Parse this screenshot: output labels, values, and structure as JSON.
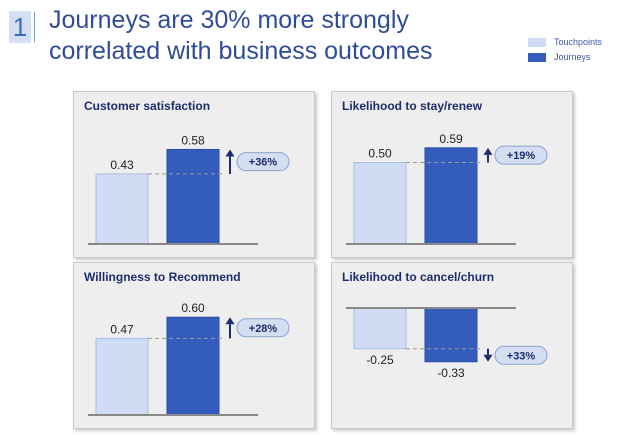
{
  "header": {
    "slide_number": "1",
    "title": "Journeys are 30% more strongly correlated with business outcomes"
  },
  "legend": [
    {
      "label": "Touchpoints",
      "color": "#cfdcf3"
    },
    {
      "label": "Journeys",
      "color": "#345cbd"
    }
  ],
  "colors": {
    "touchpoints": "#cfdcf3",
    "journeys": "#345cbd",
    "badge": "#d3def0",
    "arrow": "#1e2d6b"
  },
  "chart_data": [
    {
      "type": "bar",
      "title": "Customer satisfaction",
      "categories": [
        "Touchpoints",
        "Journeys"
      ],
      "values": [
        0.43,
        0.58
      ],
      "value_labels": [
        "0.43",
        "0.58"
      ],
      "change": "+36%",
      "direction": "up"
    },
    {
      "type": "bar",
      "title": "Likelihood to stay/renew",
      "categories": [
        "Touchpoints",
        "Journeys"
      ],
      "values": [
        0.5,
        0.59
      ],
      "value_labels": [
        "0.50",
        "0.59"
      ],
      "change": "+19%",
      "direction": "up"
    },
    {
      "type": "bar",
      "title": "Willingness to Recommend",
      "categories": [
        "Touchpoints",
        "Journeys"
      ],
      "values": [
        0.47,
        0.6
      ],
      "value_labels": [
        "0.47",
        "0.60"
      ],
      "change": "+28%",
      "direction": "up"
    },
    {
      "type": "bar",
      "title": "Likelihood to cancel/churn",
      "categories": [
        "Touchpoints",
        "Journeys"
      ],
      "values": [
        -0.25,
        -0.33
      ],
      "value_labels": [
        "-0.25",
        "-0.33"
      ],
      "change": "+33%",
      "direction": "down"
    }
  ]
}
